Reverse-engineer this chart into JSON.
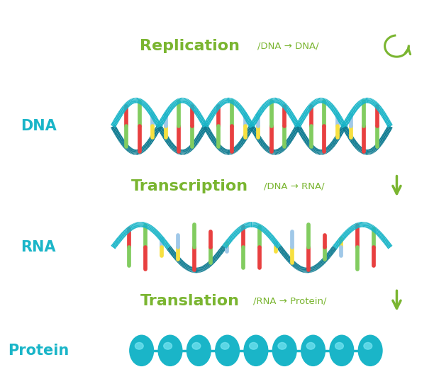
{
  "bg_color": "#ffffff",
  "teal": "#1ab5c8",
  "teal_mid": "#159ab0",
  "teal_dark": "#0d7a90",
  "green_label": "#7ab530",
  "green_arrow": "#7ab530",
  "nuc_colors": [
    "#f7e040",
    "#e84040",
    "#82cc60",
    "#a0c8e8",
    "#f7e040",
    "#e84040",
    "#82cc60"
  ],
  "nuc_colors2": [
    "#a0c8e8",
    "#82cc60",
    "#e84040",
    "#f7e040",
    "#a0c8e8",
    "#82cc60",
    "#e84040"
  ],
  "labels": {
    "replication": "Replication",
    "replication_sub": "/DNA → DNA/",
    "transcription": "Transcription",
    "transcription_sub": "/DNA → RNA/",
    "translation": "Translation",
    "translation_sub": "/RNA → Protein/",
    "dna": "DNA",
    "rna": "RNA",
    "protein": "Protein"
  },
  "figsize": [
    6.12,
    5.42
  ],
  "dpi": 100
}
